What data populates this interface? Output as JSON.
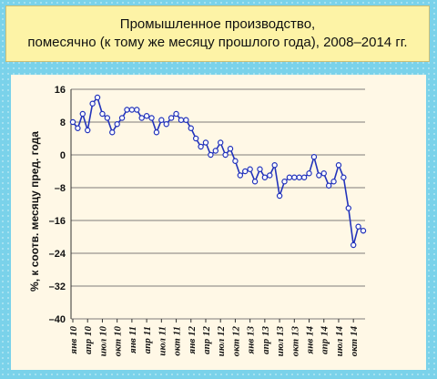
{
  "title_lines": [
    "Промышленное производство,",
    "помесячно (к тому же месяцу прошлого года), 2008–2014 гг."
  ],
  "colors": {
    "background": "#7ad2ea",
    "title_background": "#fdf3a6",
    "plot_background": "#fff8e6",
    "line": "#2233bb",
    "marker_fill": "#ffffff"
  },
  "chart_data": {
    "type": "line",
    "title": "Промышленное производство, помесячно (к тому же месяцу прошлого года), 2008–2014 гг.",
    "xlabel": "",
    "ylabel": "%, к соотв. месяцу пред. года",
    "ylim": [
      -40,
      16
    ],
    "yticks": [
      "16",
      "8",
      "0",
      "–8",
      "–16",
      "–24",
      "–32",
      "–40"
    ],
    "ytick_values": [
      16,
      8,
      0,
      -8,
      -16,
      -24,
      -32,
      -40
    ],
    "grid": true,
    "xtick_labels": [
      "янв 10",
      "апр 10",
      "июл 10",
      "окт 10",
      "янв 11",
      "апр 11",
      "июл 11",
      "окт 11",
      "янв 12",
      "апр 12",
      "июл 12",
      "окт 12",
      "янв 13",
      "апр 13",
      "июл 13",
      "окт 13",
      "янв 14",
      "апр 14",
      "июл 14",
      "окт 14"
    ],
    "xtick_index": [
      0,
      3,
      6,
      9,
      12,
      15,
      18,
      21,
      24,
      27,
      30,
      33,
      36,
      39,
      42,
      45,
      48,
      51,
      54,
      57
    ],
    "series": [
      {
        "values": [
          8,
          6.5,
          10,
          6,
          12.5,
          14,
          10,
          9,
          5.5,
          7.5,
          9,
          11,
          11,
          11,
          9,
          9.5,
          9,
          5.5,
          8.5,
          7.5,
          9,
          10,
          8.5,
          8.5,
          6.5,
          4,
          2,
          3,
          0,
          1,
          3,
          0,
          1.5,
          -1.5,
          -5,
          -4,
          -3.5,
          -6.5,
          -3.5,
          -5.5,
          -5,
          -2.5,
          -10,
          -6.5,
          -5.5,
          -5.5,
          -5.5,
          -5.5,
          -4.5,
          -0.5,
          -5,
          -4.5,
          -7.5,
          -6.5,
          -2.5,
          -5.5,
          -13,
          -22,
          -17.5,
          -18.5
        ]
      }
    ]
  }
}
